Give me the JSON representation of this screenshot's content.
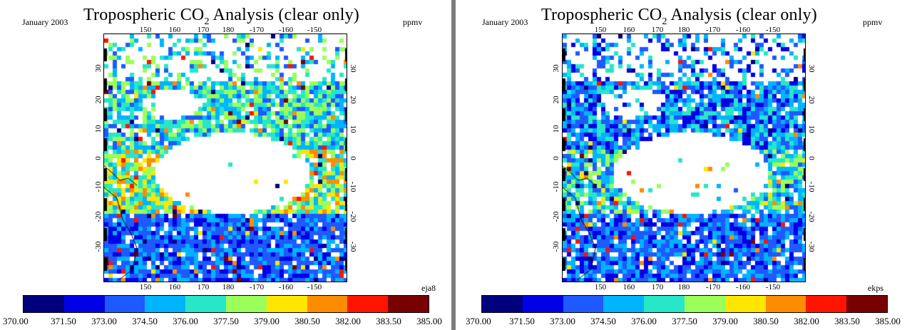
{
  "panels": [
    {
      "date": "January 2003",
      "title_main": "Tropospheric CO",
      "title_sub": "2",
      "title_rest": " Analysis (clear only)",
      "units": "ppmv",
      "run_label": "eja8",
      "seed": 7,
      "clear_bias": 0.0
    },
    {
      "date": "January 2003",
      "title_main": "Tropospheric CO",
      "title_sub": "2",
      "title_rest": " Analysis (clear only)",
      "units": "ppmv",
      "run_label": "ekps",
      "seed": 19,
      "clear_bias": -1.2
    }
  ],
  "lon_ticks": [
    "150",
    "160",
    "170",
    "180",
    "-170",
    "-160",
    "-150"
  ],
  "lat_ticks": [
    "30",
    "20",
    "10",
    "0",
    "-10",
    "-20",
    "-30"
  ],
  "colorbar": {
    "labels": [
      "370.00",
      "371.50",
      "373.00",
      "374.50",
      "376.00",
      "377.50",
      "379.00",
      "380.50",
      "382.00",
      "383.50",
      "385.00"
    ],
    "colors": [
      "#00007f",
      "#0000e6",
      "#1e5aff",
      "#00b4ff",
      "#28e6c8",
      "#9bff5a",
      "#ffe600",
      "#ff8c00",
      "#ff1400",
      "#780000"
    ]
  }
}
